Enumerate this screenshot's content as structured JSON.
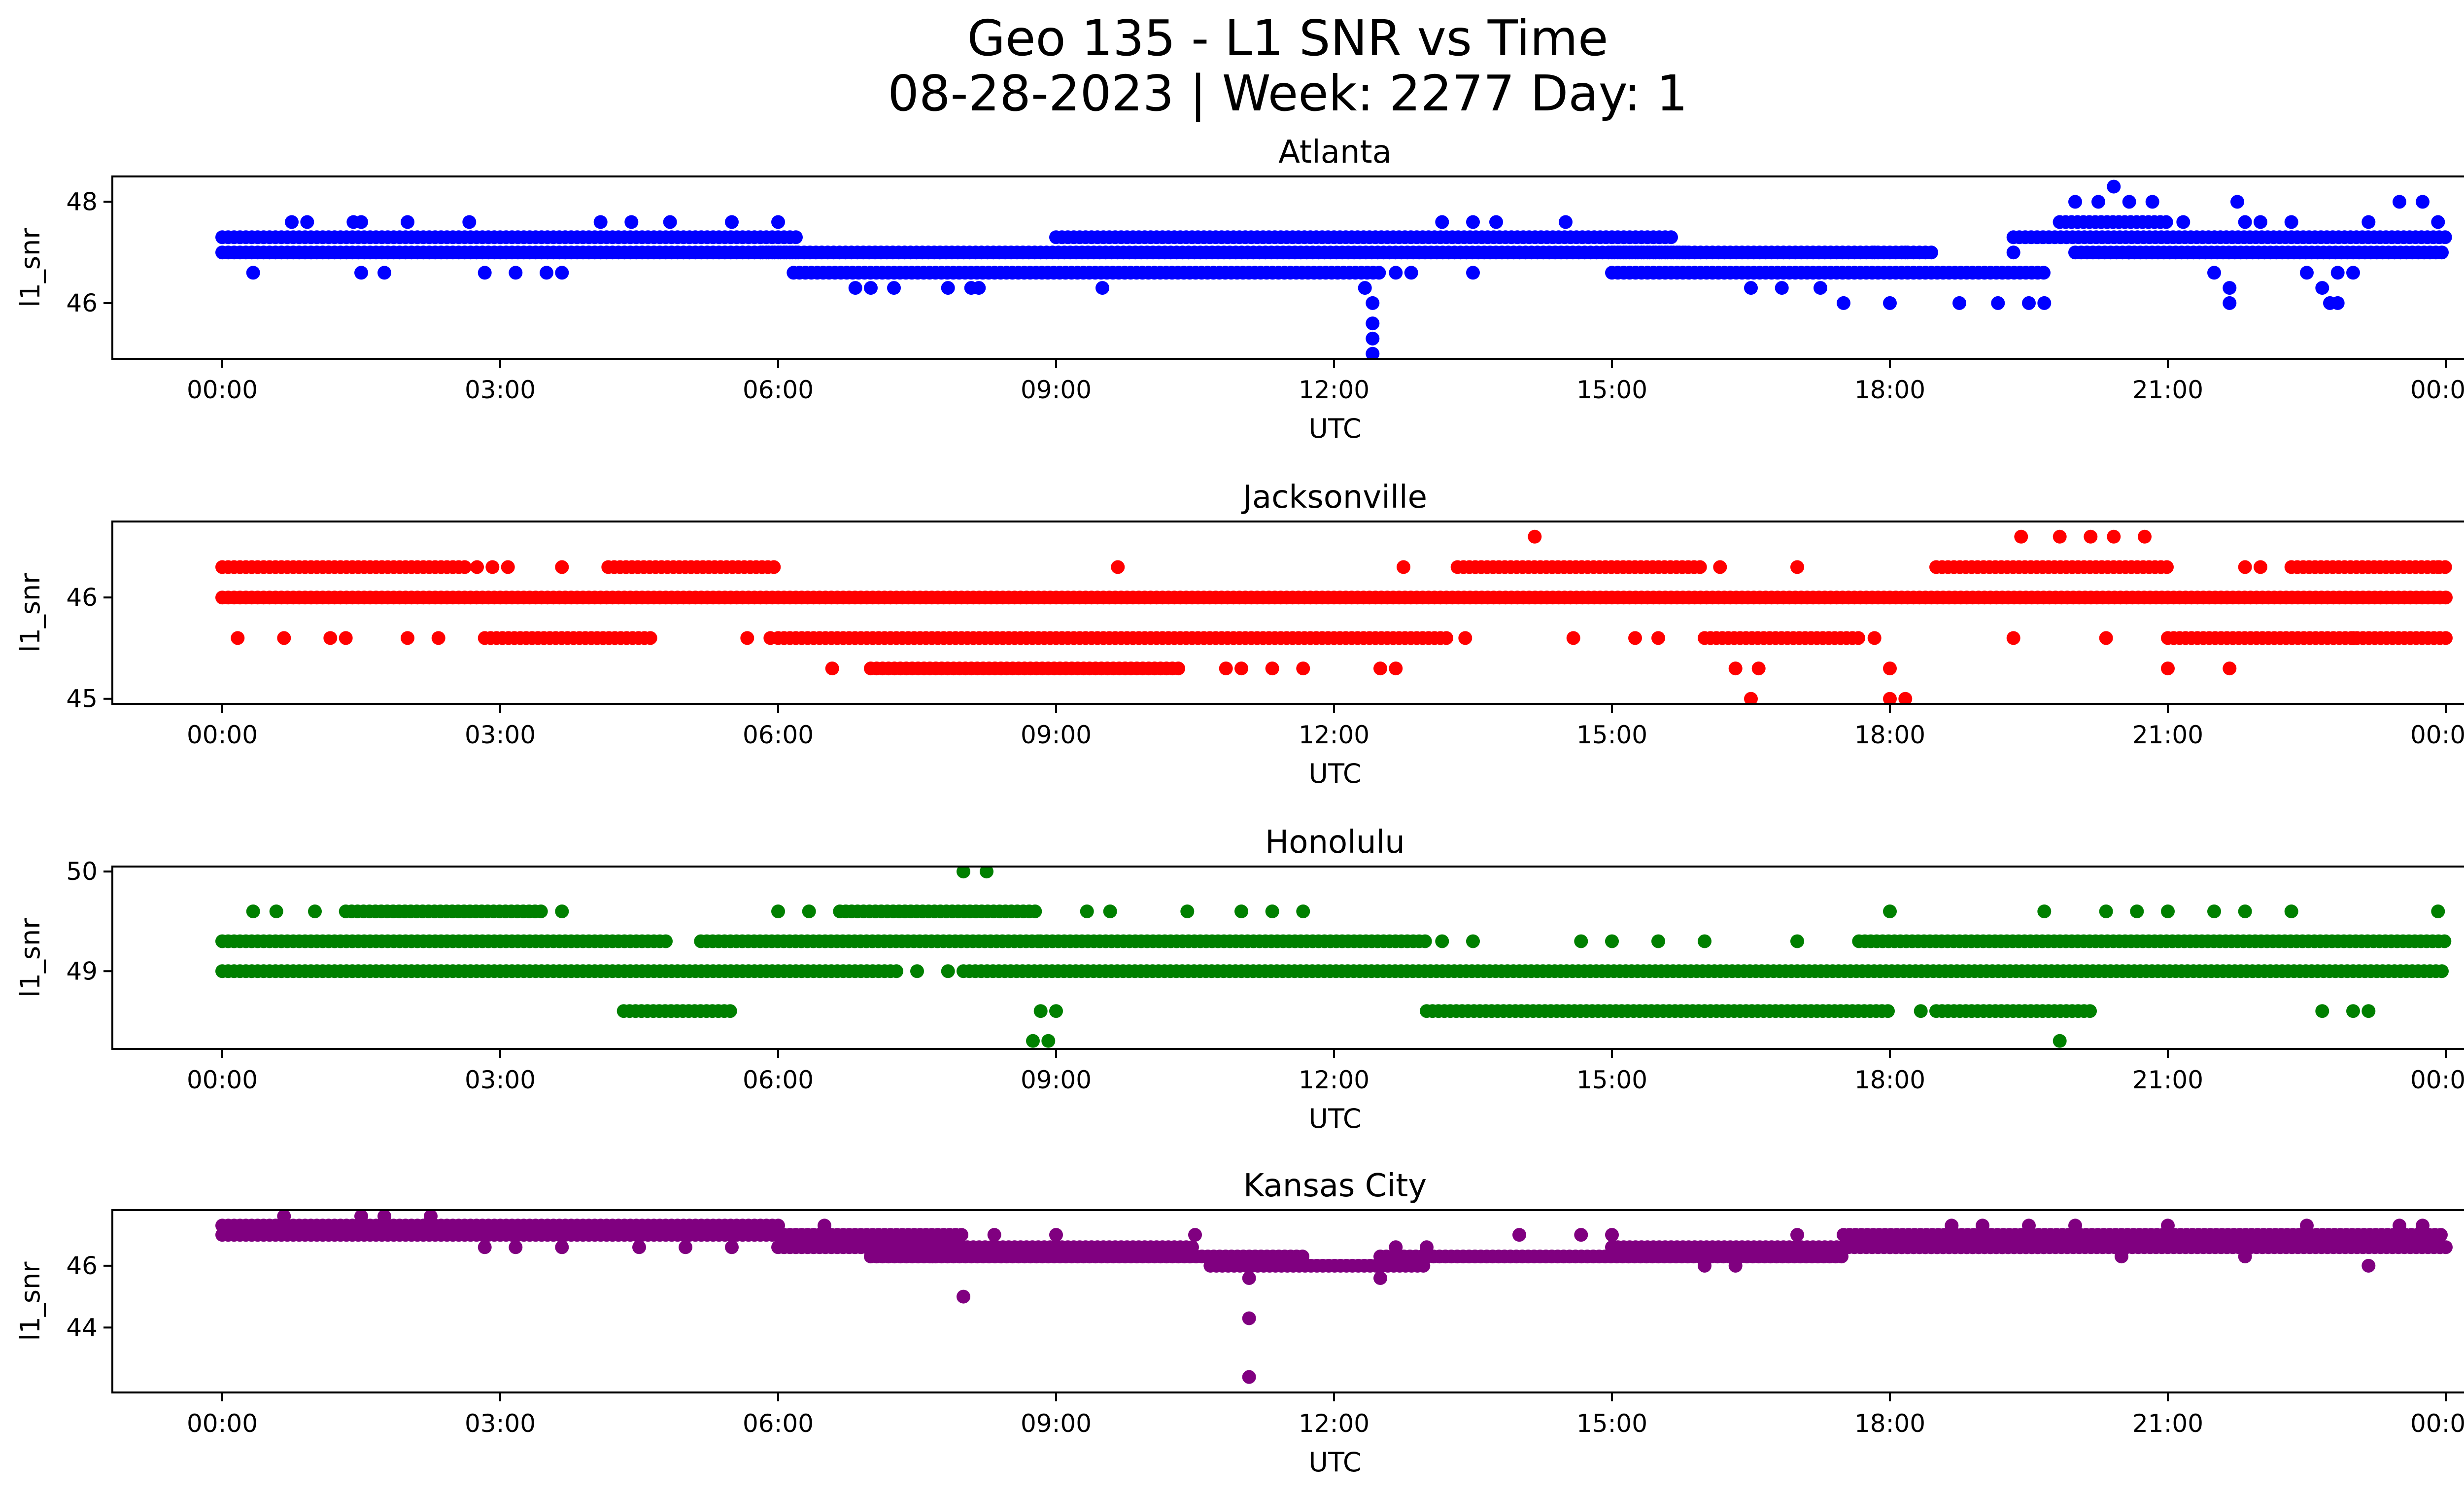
{
  "figure": {
    "title_line1": "Geo 135 - L1 SNR vs Time",
    "title_line2": "08-28-2023 | Week: 2277 Day: 1"
  },
  "chart_data": [
    {
      "type": "scatter",
      "title": "Atlanta",
      "xlabel": "UTC",
      "ylabel": "l1_snr",
      "color": "#0000ff",
      "xlim": [
        "00:00",
        "24:00"
      ],
      "ylim": [
        44.9,
        48.5
      ],
      "x_ticks": [
        "00:00",
        "03:00",
        "06:00",
        "09:00",
        "12:00",
        "15:00",
        "18:00",
        "21:00",
        "00:00"
      ],
      "y_ticks": [
        46,
        48
      ],
      "grid": false,
      "bands": [
        {
          "x_start": "00:00",
          "x_end": "06:15",
          "y": 47.0
        },
        {
          "x_start": "00:00",
          "x_end": "06:15",
          "y": 47.3
        },
        {
          "x_start": "05:50",
          "x_end": "15:50",
          "y": 47.0
        },
        {
          "x_start": "06:10",
          "x_end": "12:30",
          "y": 46.6
        },
        {
          "x_start": "09:00",
          "x_end": "15:40",
          "y": 47.3
        },
        {
          "x_start": "15:00",
          "x_end": "19:40",
          "y": 46.6
        },
        {
          "x_start": "15:00",
          "x_end": "18:30",
          "y": 47.0
        },
        {
          "x_start": "19:20",
          "x_end": "24:00",
          "y": 47.3
        },
        {
          "x_start": "20:00",
          "x_end": "24:00",
          "y": 47.0
        },
        {
          "x_start": "19:50",
          "x_end": "21:00",
          "y": 47.6
        }
      ],
      "points": [
        [
          "00:20",
          46.6
        ],
        [
          "00:45",
          47.6
        ],
        [
          "00:55",
          47.6
        ],
        [
          "01:25",
          47.6
        ],
        [
          "01:30",
          46.6
        ],
        [
          "01:45",
          46.6
        ],
        [
          "01:30",
          47.6
        ],
        [
          "02:00",
          47.6
        ],
        [
          "02:40",
          47.6
        ],
        [
          "02:50",
          46.6
        ],
        [
          "03:10",
          46.6
        ],
        [
          "03:30",
          46.6
        ],
        [
          "03:40",
          46.6
        ],
        [
          "04:05",
          47.6
        ],
        [
          "04:25",
          47.6
        ],
        [
          "04:50",
          47.6
        ],
        [
          "05:30",
          47.6
        ],
        [
          "06:00",
          47.6
        ],
        [
          "06:50",
          46.3
        ],
        [
          "07:00",
          46.3
        ],
        [
          "07:15",
          46.3
        ],
        [
          "07:50",
          46.3
        ],
        [
          "08:05",
          46.3
        ],
        [
          "08:10",
          46.3
        ],
        [
          "09:30",
          46.3
        ],
        [
          "12:20",
          46.3
        ],
        [
          "12:25",
          46.0
        ],
        [
          "12:25",
          45.6
        ],
        [
          "12:25",
          45.3
        ],
        [
          "12:25",
          45.0
        ],
        [
          "12:40",
          46.6
        ],
        [
          "12:50",
          46.6
        ],
        [
          "13:10",
          47.6
        ],
        [
          "13:30",
          46.6
        ],
        [
          "13:30",
          47.6
        ],
        [
          "13:45",
          47.6
        ],
        [
          "14:30",
          47.6
        ],
        [
          "16:30",
          46.3
        ],
        [
          "16:50",
          46.3
        ],
        [
          "17:15",
          46.3
        ],
        [
          "17:30",
          46.0
        ],
        [
          "18:00",
          46.0
        ],
        [
          "18:45",
          46.0
        ],
        [
          "19:10",
          46.0
        ],
        [
          "19:30",
          46.0
        ],
        [
          "19:40",
          46.0
        ],
        [
          "17:50",
          47.0
        ],
        [
          "18:10",
          47.0
        ],
        [
          "19:20",
          47.0
        ],
        [
          "19:50",
          47.6
        ],
        [
          "20:00",
          48.0
        ],
        [
          "20:15",
          48.0
        ],
        [
          "20:25",
          48.3
        ],
        [
          "20:35",
          48.0
        ],
        [
          "20:50",
          48.0
        ],
        [
          "20:35",
          47.0
        ],
        [
          "21:30",
          46.6
        ],
        [
          "21:40",
          46.3
        ],
        [
          "21:40",
          46.0
        ],
        [
          "21:50",
          47.6
        ],
        [
          "21:10",
          47.6
        ],
        [
          "22:00",
          47.6
        ],
        [
          "22:20",
          47.6
        ],
        [
          "22:30",
          46.6
        ],
        [
          "22:40",
          46.3
        ],
        [
          "22:45",
          46.0
        ],
        [
          "22:50",
          46.0
        ],
        [
          "22:50",
          46.6
        ],
        [
          "23:00",
          46.6
        ],
        [
          "23:10",
          47.6
        ],
        [
          "23:30",
          48.0
        ],
        [
          "23:45",
          48.0
        ],
        [
          "23:55",
          47.6
        ],
        [
          "21:45",
          48.0
        ]
      ]
    },
    {
      "type": "scatter",
      "title": "Jacksonville",
      "xlabel": "UTC",
      "ylabel": "l1_snr",
      "color": "#ff0000",
      "xlim": [
        "00:00",
        "24:00"
      ],
      "ylim": [
        44.95,
        46.75
      ],
      "x_ticks": [
        "00:00",
        "03:00",
        "06:00",
        "09:00",
        "12:00",
        "15:00",
        "18:00",
        "21:00",
        "00:00"
      ],
      "y_ticks": [
        45,
        46
      ],
      "grid": false,
      "bands": [
        {
          "x_start": "00:00",
          "x_end": "24:00",
          "y": 46.0
        },
        {
          "x_start": "00:00",
          "x_end": "02:40",
          "y": 46.3
        },
        {
          "x_start": "04:10",
          "x_end": "06:00",
          "y": 46.3
        },
        {
          "x_start": "13:20",
          "x_end": "16:00",
          "y": 46.3
        },
        {
          "x_start": "18:30",
          "x_end": "21:00",
          "y": 46.3
        },
        {
          "x_start": "22:20",
          "x_end": "24:00",
          "y": 46.3
        },
        {
          "x_start": "06:00",
          "x_end": "13:15",
          "y": 45.6
        },
        {
          "x_start": "02:50",
          "x_end": "04:40",
          "y": 45.6
        },
        {
          "x_start": "16:00",
          "x_end": "17:40",
          "y": 45.6
        },
        {
          "x_start": "21:00",
          "x_end": "24:00",
          "y": 45.6
        },
        {
          "x_start": "07:00",
          "x_end": "10:20",
          "y": 45.3
        }
      ],
      "points": [
        [
          "00:10",
          45.6
        ],
        [
          "00:40",
          45.6
        ],
        [
          "01:10",
          45.6
        ],
        [
          "01:20",
          45.6
        ],
        [
          "02:00",
          45.6
        ],
        [
          "02:20",
          45.6
        ],
        [
          "02:45",
          46.3
        ],
        [
          "02:55",
          46.3
        ],
        [
          "03:05",
          46.3
        ],
        [
          "03:40",
          46.3
        ],
        [
          "05:40",
          45.6
        ],
        [
          "05:55",
          45.6
        ],
        [
          "06:35",
          45.3
        ],
        [
          "09:40",
          46.3
        ],
        [
          "10:50",
          45.3
        ],
        [
          "11:00",
          45.3
        ],
        [
          "11:20",
          45.3
        ],
        [
          "11:40",
          45.3
        ],
        [
          "12:40",
          45.3
        ],
        [
          "12:45",
          46.3
        ],
        [
          "12:30",
          45.3
        ],
        [
          "13:25",
          45.6
        ],
        [
          "14:10",
          46.6
        ],
        [
          "14:35",
          45.6
        ],
        [
          "15:15",
          45.6
        ],
        [
          "15:30",
          45.6
        ],
        [
          "16:10",
          46.3
        ],
        [
          "16:20",
          45.3
        ],
        [
          "16:30",
          45.0
        ],
        [
          "16:35",
          45.3
        ],
        [
          "17:00",
          46.3
        ],
        [
          "17:50",
          45.6
        ],
        [
          "18:00",
          45.3
        ],
        [
          "18:00",
          45.0
        ],
        [
          "18:10",
          45.0
        ],
        [
          "19:20",
          45.6
        ],
        [
          "19:25",
          46.6
        ],
        [
          "19:50",
          46.6
        ],
        [
          "20:10",
          46.6
        ],
        [
          "20:25",
          46.6
        ],
        [
          "20:45",
          46.6
        ],
        [
          "20:20",
          45.6
        ],
        [
          "21:00",
          45.3
        ],
        [
          "21:40",
          45.3
        ],
        [
          "21:50",
          46.3
        ],
        [
          "22:00",
          46.3
        ],
        [
          "23:00",
          45.6
        ],
        [
          "23:55",
          46.3
        ]
      ]
    },
    {
      "type": "scatter",
      "title": "Honolulu",
      "xlabel": "UTC",
      "ylabel": "l1_snr",
      "color": "#008000",
      "xlim": [
        "00:00",
        "24:00"
      ],
      "ylim": [
        48.22,
        50.05
      ],
      "x_ticks": [
        "00:00",
        "03:00",
        "06:00",
        "09:00",
        "12:00",
        "15:00",
        "18:00",
        "21:00",
        "00:00"
      ],
      "y_ticks": [
        49,
        50
      ],
      "grid": false,
      "bands": [
        {
          "x_start": "00:00",
          "x_end": "07:20",
          "y": 49.0
        },
        {
          "x_start": "08:00",
          "x_end": "24:00",
          "y": 49.0
        },
        {
          "x_start": "00:00",
          "x_end": "04:50",
          "y": 49.3
        },
        {
          "x_start": "05:10",
          "x_end": "08:50",
          "y": 49.3
        },
        {
          "x_start": "08:50",
          "x_end": "13:00",
          "y": 49.3
        },
        {
          "x_start": "17:40",
          "x_end": "24:00",
          "y": 49.3
        },
        {
          "x_start": "01:20",
          "x_end": "03:30",
          "y": 49.6
        },
        {
          "x_start": "06:40",
          "x_end": "08:50",
          "y": 49.6
        },
        {
          "x_start": "13:00",
          "x_end": "18:00",
          "y": 48.6
        },
        {
          "x_start": "18:30",
          "x_end": "20:10",
          "y": 48.6
        },
        {
          "x_start": "04:20",
          "x_end": "05:30",
          "y": 48.6
        }
      ],
      "points": [
        [
          "00:20",
          49.6
        ],
        [
          "00:35",
          49.6
        ],
        [
          "01:00",
          49.6
        ],
        [
          "03:40",
          49.6
        ],
        [
          "06:00",
          49.6
        ],
        [
          "06:20",
          49.6
        ],
        [
          "07:30",
          49.0
        ],
        [
          "07:50",
          49.0
        ],
        [
          "08:00",
          50.0
        ],
        [
          "08:15",
          50.0
        ],
        [
          "08:50",
          48.6
        ],
        [
          "08:55",
          48.3
        ],
        [
          "08:45",
          48.3
        ],
        [
          "09:00",
          48.6
        ],
        [
          "09:20",
          49.6
        ],
        [
          "09:35",
          49.6
        ],
        [
          "10:25",
          49.6
        ],
        [
          "11:00",
          49.6
        ],
        [
          "11:20",
          49.6
        ],
        [
          "11:40",
          49.6
        ],
        [
          "13:10",
          49.3
        ],
        [
          "13:30",
          49.3
        ],
        [
          "14:40",
          49.3
        ],
        [
          "15:00",
          49.3
        ],
        [
          "15:30",
          49.3
        ],
        [
          "16:00",
          49.3
        ],
        [
          "17:00",
          49.3
        ],
        [
          "18:00",
          49.6
        ],
        [
          "18:20",
          48.6
        ],
        [
          "19:40",
          49.6
        ],
        [
          "19:50",
          48.3
        ],
        [
          "20:20",
          49.6
        ],
        [
          "20:40",
          49.6
        ],
        [
          "21:00",
          49.6
        ],
        [
          "21:30",
          49.6
        ],
        [
          "21:50",
          49.6
        ],
        [
          "22:20",
          49.6
        ],
        [
          "22:40",
          48.6
        ],
        [
          "23:00",
          48.6
        ],
        [
          "23:10",
          48.6
        ],
        [
          "23:55",
          49.6
        ]
      ]
    },
    {
      "type": "scatter",
      "title": "Kansas City",
      "xlabel": "UTC",
      "ylabel": "l1_snr",
      "color": "#800080",
      "xlim": [
        "00:00",
        "24:00"
      ],
      "ylim": [
        41.9,
        47.8
      ],
      "x_ticks": [
        "00:00",
        "03:00",
        "06:00",
        "09:00",
        "12:00",
        "15:00",
        "18:00",
        "21:00",
        "00:00"
      ],
      "y_ticks": [
        44,
        46
      ],
      "grid": false,
      "bands": [
        {
          "x_start": "00:00",
          "x_end": "06:30",
          "y": 47.0
        },
        {
          "x_start": "00:00",
          "x_end": "06:00",
          "y": 47.3
        },
        {
          "x_start": "06:00",
          "x_end": "10:30",
          "y": 46.6
        },
        {
          "x_start": "06:00",
          "x_end": "08:00",
          "y": 47.0
        },
        {
          "x_start": "07:00",
          "x_end": "11:40",
          "y": 46.3
        },
        {
          "x_start": "10:40",
          "x_end": "13:00",
          "y": 46.0
        },
        {
          "x_start": "12:30",
          "x_end": "17:30",
          "y": 46.3
        },
        {
          "x_start": "15:00",
          "x_end": "19:40",
          "y": 46.6
        },
        {
          "x_start": "17:30",
          "x_end": "24:00",
          "y": 47.0
        },
        {
          "x_start": "18:00",
          "x_end": "24:00",
          "y": 46.6
        }
      ],
      "points": [
        [
          "00:40",
          47.6
        ],
        [
          "01:30",
          47.6
        ],
        [
          "01:45",
          47.6
        ],
        [
          "02:15",
          47.6
        ],
        [
          "02:50",
          46.6
        ],
        [
          "03:10",
          46.6
        ],
        [
          "03:40",
          46.6
        ],
        [
          "04:30",
          46.6
        ],
        [
          "05:00",
          46.6
        ],
        [
          "05:30",
          46.6
        ],
        [
          "06:30",
          47.3
        ],
        [
          "07:40",
          46.3
        ],
        [
          "08:00",
          45.0
        ],
        [
          "08:20",
          47.0
        ],
        [
          "09:00",
          47.0
        ],
        [
          "10:30",
          47.0
        ],
        [
          "11:05",
          45.6
        ],
        [
          "11:05",
          44.3
        ],
        [
          "11:05",
          42.4
        ],
        [
          "12:30",
          45.6
        ],
        [
          "12:40",
          46.6
        ],
        [
          "13:00",
          46.6
        ],
        [
          "14:00",
          47.0
        ],
        [
          "14:40",
          47.0
        ],
        [
          "15:00",
          47.0
        ],
        [
          "16:00",
          46.0
        ],
        [
          "16:20",
          46.0
        ],
        [
          "17:00",
          47.0
        ],
        [
          "18:40",
          47.3
        ],
        [
          "19:00",
          47.3
        ],
        [
          "19:30",
          47.3
        ],
        [
          "20:00",
          47.3
        ],
        [
          "20:30",
          46.3
        ],
        [
          "21:00",
          47.3
        ],
        [
          "21:50",
          46.3
        ],
        [
          "22:30",
          47.3
        ],
        [
          "23:10",
          46.0
        ],
        [
          "23:30",
          47.3
        ],
        [
          "23:45",
          47.3
        ]
      ]
    }
  ]
}
